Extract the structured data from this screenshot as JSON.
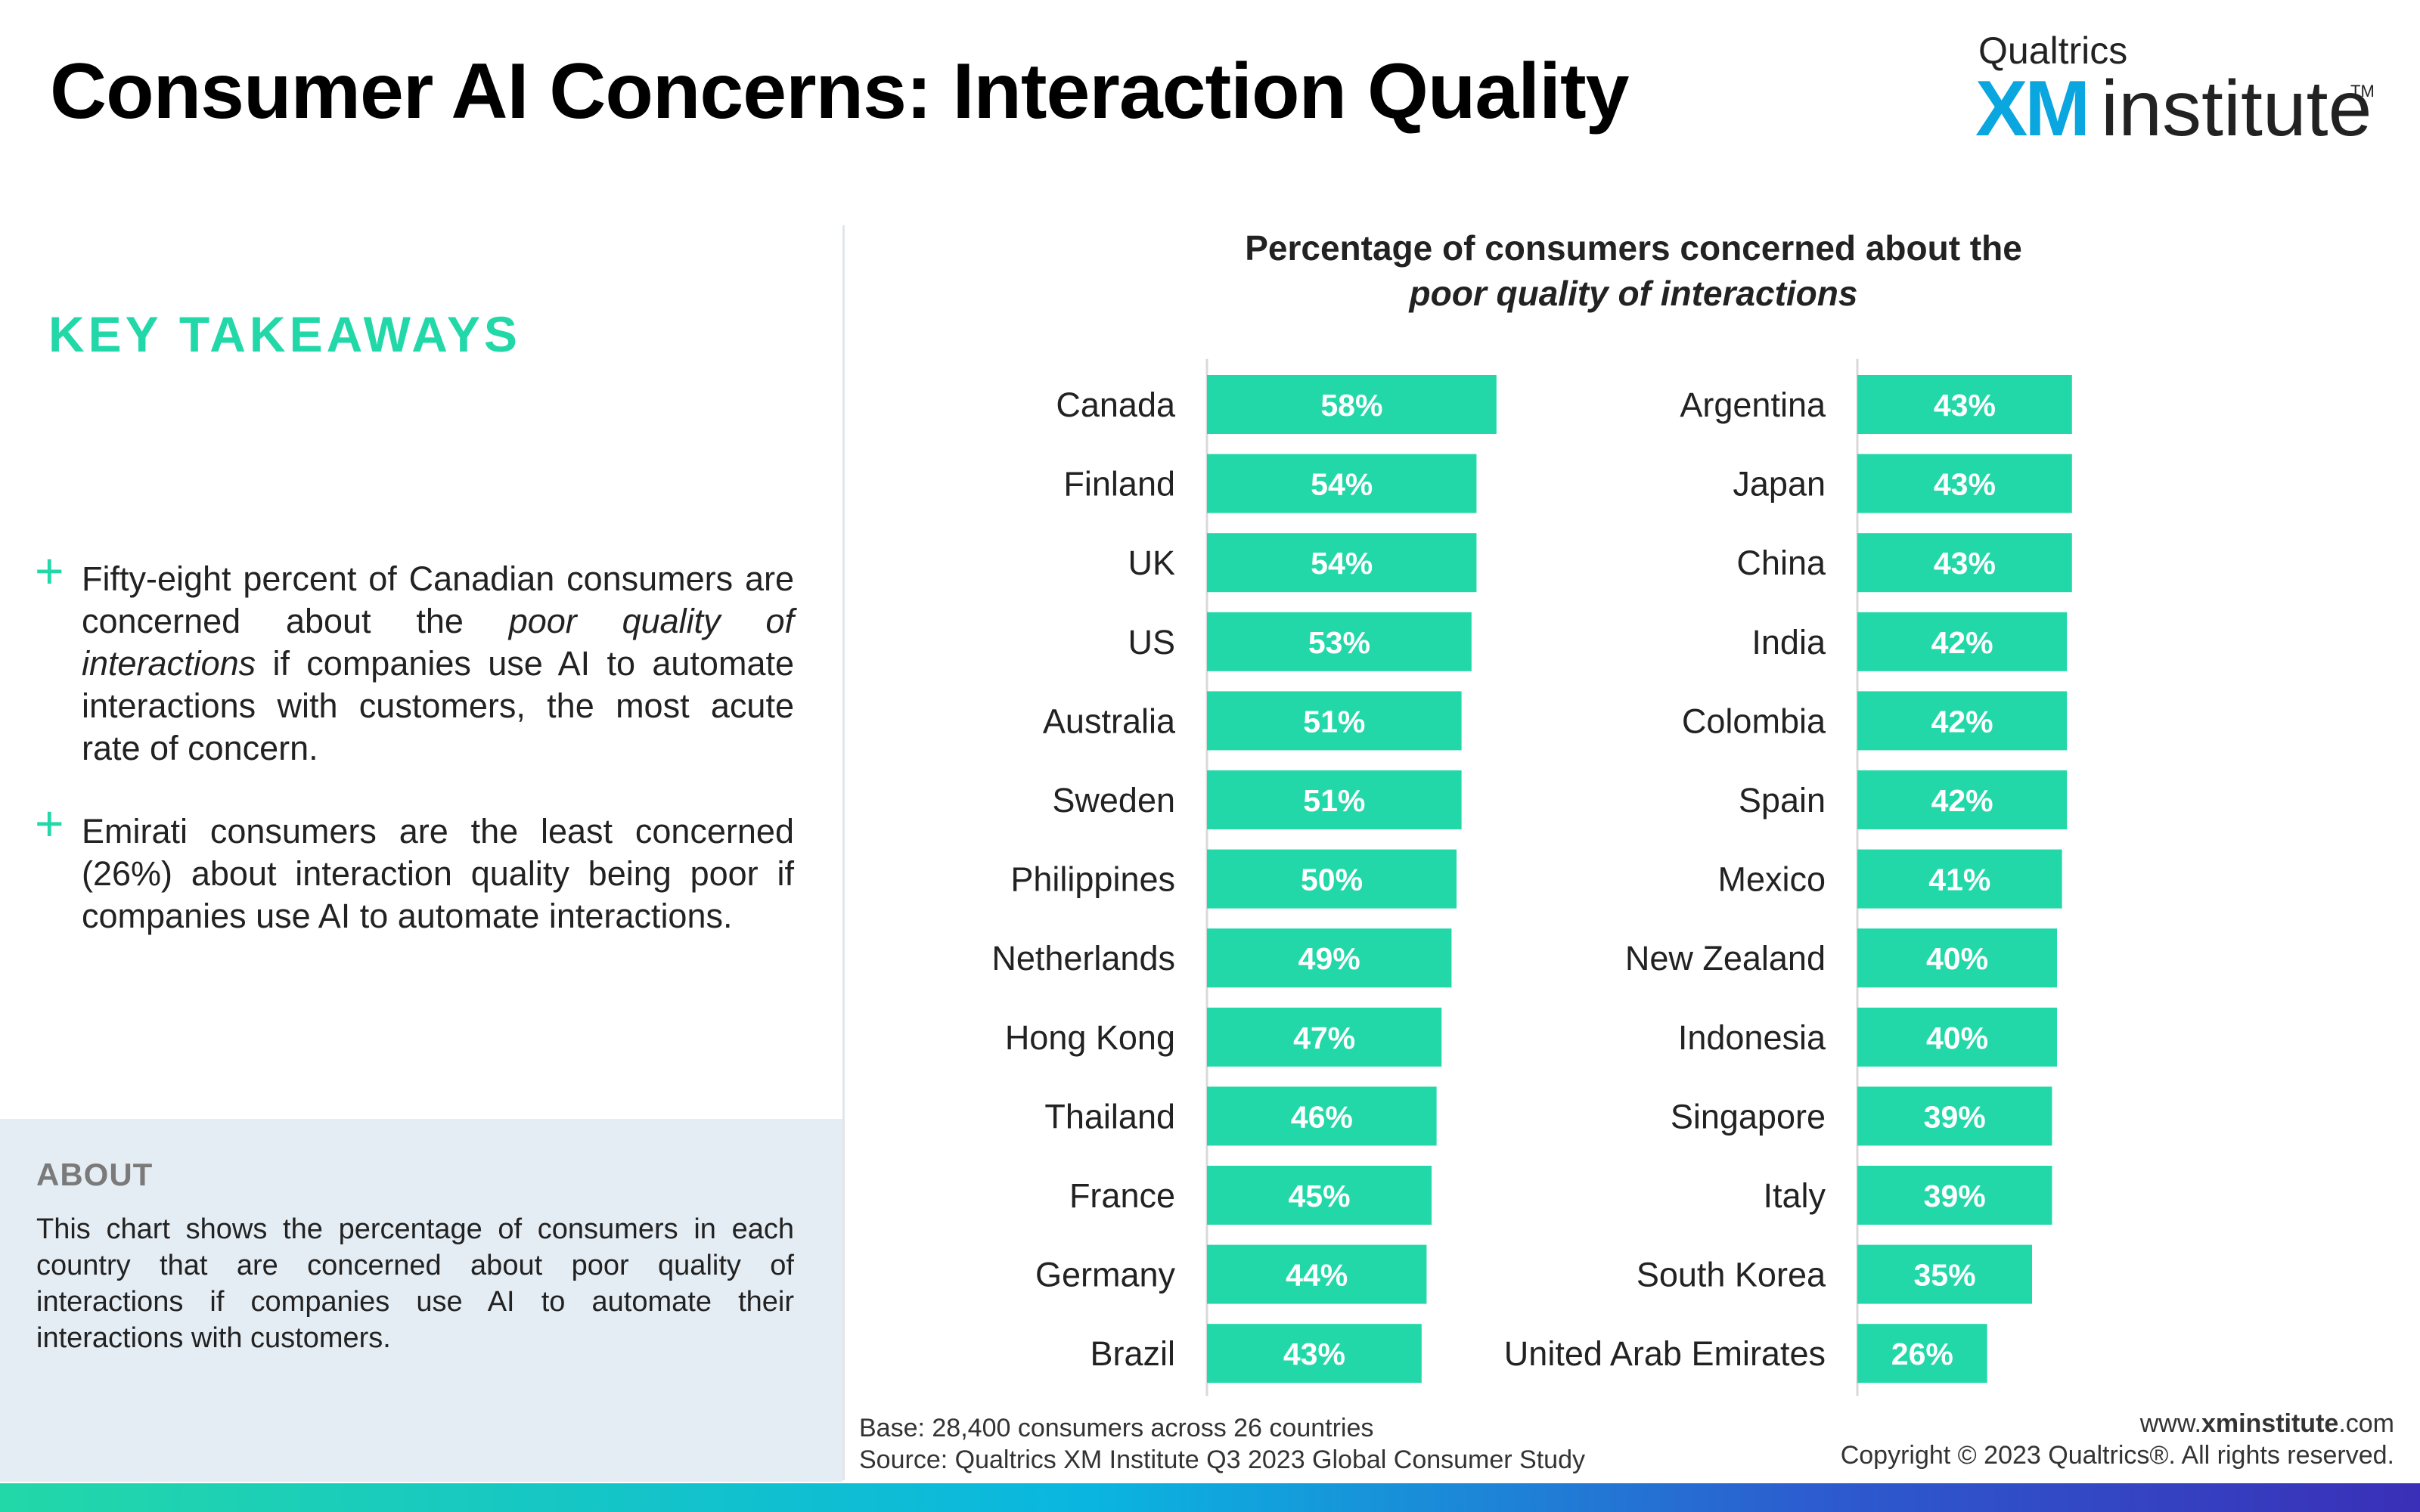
{
  "header": {
    "title": "Consumer AI Concerns: Interaction Quality"
  },
  "logo": {
    "top_text": "Qualtrics",
    "xm": "XM",
    "institute": "institute",
    "tm": "TM"
  },
  "takeaways": {
    "heading": "KEY TAKEAWAYS",
    "bullets": [
      {
        "before": "Fifty-eight percent of Canadian consumers are concerned about the ",
        "italic": "poor quality of interactions",
        "after": " if companies use AI to automate interactions with customers, the most acute rate of concern."
      },
      {
        "text": "Emirati consumers are the least concerned (26%) about interaction quality being poor if companies use AI to automate interactions."
      }
    ]
  },
  "about": {
    "heading": "ABOUT",
    "text": "This chart shows the percentage of consumers in each country that are concerned about poor quality of interactions if companies use AI to automate their interactions with customers."
  },
  "footer": {
    "base": "Base: 28,400 consumers across 26 countries",
    "source": "Source: Qualtrics XM Institute Q3 2023 Global Consumer Study",
    "website_prefix": "www.",
    "website_bold": "xminstitute",
    "website_suffix": ".com",
    "copyright": "Copyright © 2023 Qualtrics®. All rights reserved."
  },
  "colors": {
    "bar": "#22d8a8",
    "accent": "#22d8a8",
    "logo_blue": "#0aa6df"
  },
  "chart_data": {
    "type": "bar",
    "orientation": "horizontal",
    "title": "Percentage of consumers concerned about the",
    "subtitle": "poor quality of interactions",
    "value_format": "percent",
    "panels": [
      {
        "categories": [
          "Canada",
          "Finland",
          "UK",
          "US",
          "Australia",
          "Sweden",
          "Philippines",
          "Netherlands",
          "Hong Kong",
          "Thailand",
          "France",
          "Germany",
          "Brazil"
        ],
        "values": [
          58,
          54,
          54,
          53,
          51,
          51,
          50,
          49,
          47,
          46,
          45,
          44,
          43
        ]
      },
      {
        "categories": [
          "Argentina",
          "Japan",
          "China",
          "India",
          "Colombia",
          "Spain",
          "Mexico",
          "New Zealand",
          "Indonesia",
          "Singapore",
          "Italy",
          "South Korea",
          "United Arab Emirates"
        ],
        "values": [
          43,
          43,
          43,
          42,
          42,
          42,
          41,
          40,
          40,
          39,
          39,
          35,
          26
        ]
      }
    ]
  }
}
